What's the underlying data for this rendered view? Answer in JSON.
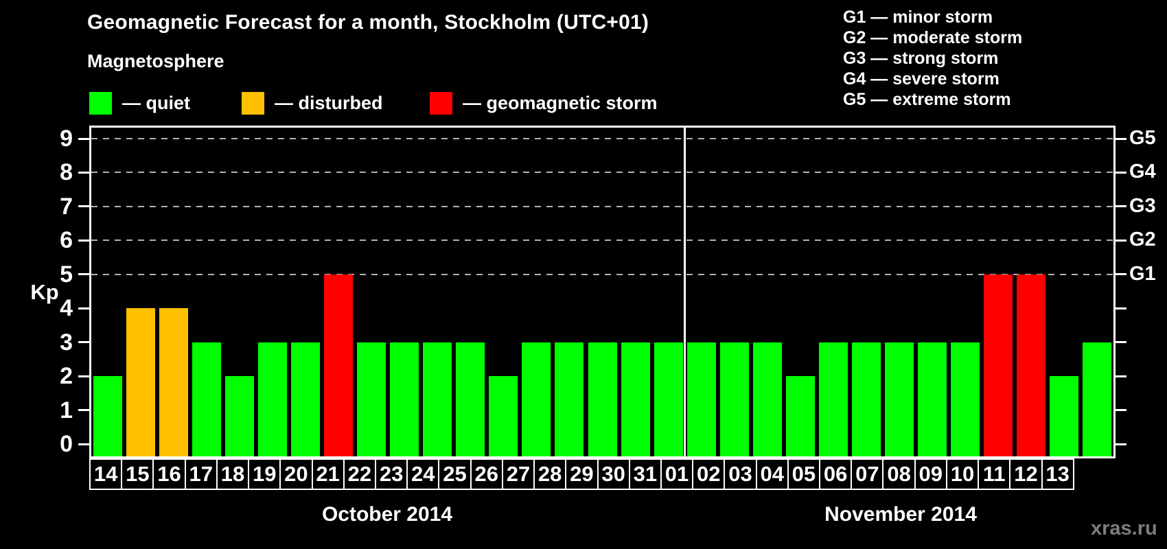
{
  "title": "Geomagnetic Forecast for a month, Stockholm (UTC+01)",
  "subtitle": "Magnetosphere",
  "legend": {
    "items": [
      {
        "key": "quiet",
        "label": "— quiet"
      },
      {
        "key": "disturbed",
        "label": "— disturbed"
      },
      {
        "key": "storm",
        "label": "— geomagnetic storm"
      }
    ]
  },
  "g_scale_legend": [
    "G1 — minor storm",
    "G2 — moderate storm",
    "G3 — strong storm",
    "G4 — severe storm",
    "G5 — extreme storm"
  ],
  "watermark": "xras.ru",
  "chart_data": {
    "type": "bar",
    "ylabel": "Kp",
    "ylim": [
      0,
      9
    ],
    "yticks": [
      0,
      1,
      2,
      3,
      4,
      5,
      6,
      7,
      8,
      9
    ],
    "gridlines": [
      5,
      6,
      7,
      8,
      9
    ],
    "grid_style": "dashed",
    "legend_position": "top",
    "right_axis_labels": [
      {
        "label": "G1",
        "value": 5
      },
      {
        "label": "G2",
        "value": 6
      },
      {
        "label": "G3",
        "value": 7
      },
      {
        "label": "G4",
        "value": 8
      },
      {
        "label": "G5",
        "value": 9
      }
    ],
    "colors": {
      "quiet": "#00ff00",
      "disturbed": "#ffc000",
      "storm": "#ff0000"
    },
    "months": [
      {
        "label": "October 2014",
        "days": [
          "14",
          "15",
          "16",
          "17",
          "18",
          "19",
          "20",
          "21",
          "22",
          "23",
          "24",
          "25",
          "26",
          "27",
          "28",
          "29",
          "30",
          "31"
        ],
        "kp": [
          2,
          4,
          4,
          3,
          2,
          3,
          3,
          5,
          3,
          3,
          3,
          3,
          2,
          3,
          3,
          3,
          3,
          3
        ],
        "state": [
          "quiet",
          "disturbed",
          "disturbed",
          "quiet",
          "quiet",
          "quiet",
          "quiet",
          "storm",
          "quiet",
          "quiet",
          "quiet",
          "quiet",
          "quiet",
          "quiet",
          "quiet",
          "quiet",
          "quiet",
          "quiet"
        ]
      },
      {
        "label": "November 2014",
        "days": [
          "01",
          "02",
          "03",
          "04",
          "05",
          "06",
          "07",
          "08",
          "09",
          "10",
          "11",
          "12",
          "13"
        ],
        "kp": [
          3,
          3,
          3,
          2,
          3,
          3,
          3,
          3,
          3,
          5,
          5,
          2,
          3
        ],
        "state": [
          "quiet",
          "quiet",
          "quiet",
          "quiet",
          "quiet",
          "quiet",
          "quiet",
          "quiet",
          "quiet",
          "storm",
          "storm",
          "quiet",
          "quiet"
        ]
      }
    ]
  }
}
